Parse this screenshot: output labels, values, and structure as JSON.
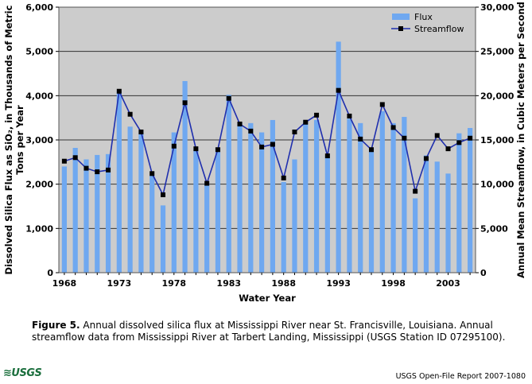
{
  "chart_data": {
    "type": "bar",
    "title": "",
    "xlabel": "Water Year",
    "ylabel_left": "Dissolved Silica Flux as SiO₂, in Thousands of Metric Tons per Year",
    "ylabel_right": "Annual Mean Streamflow, in Cubic Meters per Second",
    "ylim_left": [
      0,
      6000
    ],
    "ylim_right": [
      0,
      30000
    ],
    "yticks_left": [
      "0",
      "1,000",
      "2,000",
      "3,000",
      "4,000",
      "5,000",
      "6,000"
    ],
    "yticks_right": [
      "0",
      "5,000",
      "10,000",
      "15,000",
      "20,000",
      "25,000",
      "30,000"
    ],
    "xtick_labels": [
      "1968",
      "1973",
      "1978",
      "1983",
      "1988",
      "1993",
      "1998",
      "2003"
    ],
    "grid": true,
    "legend_position": "top-right",
    "x": [
      1968,
      1969,
      1970,
      1971,
      1972,
      1973,
      1974,
      1975,
      1976,
      1977,
      1978,
      1979,
      1980,
      1981,
      1982,
      1983,
      1984,
      1985,
      1986,
      1987,
      1988,
      1989,
      1990,
      1991,
      1992,
      1993,
      1994,
      1995,
      1996,
      1997,
      1998,
      1999,
      2000,
      2001,
      2002,
      2003,
      2004,
      2005
    ],
    "series": [
      {
        "name": "Flux",
        "type": "bar",
        "axis": "left",
        "color": "#6fa8f0",
        "values": [
          2400,
          2820,
          2560,
          2660,
          2680,
          4100,
          3300,
          3200,
          2200,
          1520,
          3170,
          4330,
          2800,
          2020,
          2820,
          4020,
          3400,
          3380,
          3170,
          3450,
          2050,
          2560,
          3450,
          3450,
          2650,
          5220,
          3480,
          3380,
          2820,
          3650,
          3380,
          3520,
          1680,
          2650,
          2510,
          2240,
          3150,
          3270
        ]
      },
      {
        "name": "Streamflow",
        "type": "line",
        "axis": "right",
        "color": "#1f2fae",
        "values": [
          12600,
          13000,
          11800,
          11400,
          11600,
          20500,
          17900,
          15900,
          11200,
          8800,
          14300,
          19200,
          14000,
          10100,
          13900,
          19700,
          16800,
          16000,
          14200,
          14500,
          10700,
          15900,
          17000,
          17800,
          13200,
          20600,
          17700,
          15100,
          13900,
          19000,
          16400,
          15200,
          9200,
          12900,
          15500,
          14000,
          14700,
          15200
        ]
      }
    ]
  },
  "caption": {
    "label": "Figure 5.",
    "text": " Annual dissolved silica flux at Mississippi River near St. Francisville, Louisiana. Annual streamflow data from Mississippi River at Tarbert Landing, Mississippi (USGS Station ID 07295100)."
  },
  "logo_text": "USGS",
  "footer_note": "USGS Open-File Report 2007-1080"
}
